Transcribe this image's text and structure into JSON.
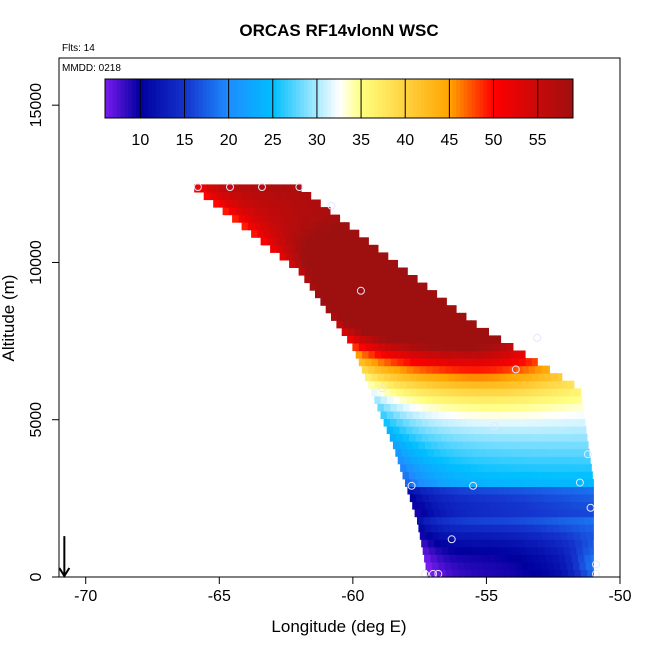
{
  "chart_data": {
    "type": "heatmap",
    "title": "ORCAS RF14vlonN WSC",
    "annotations": [
      "Flts: 14",
      "MMDD: 0218"
    ],
    "xlabel": "Longitude (deg E)",
    "ylabel": "Altitude (m)",
    "xlim": [
      -71,
      -50
    ],
    "ylim": [
      0,
      16500
    ],
    "x_ticks": [
      -70,
      -65,
      -60,
      -55,
      -50
    ],
    "y_ticks": [
      0,
      5000,
      10000,
      15000
    ],
    "grid": false,
    "colorbar": {
      "location": "top",
      "range": [
        6,
        59
      ],
      "ticks": [
        10,
        15,
        20,
        25,
        30,
        35,
        40,
        45,
        50,
        55
      ],
      "colors": [
        "#7b1bf0",
        "#00009e",
        "#1432cc",
        "#1e8cff",
        "#00bfff",
        "#ffffff",
        "#ffff80",
        "#ffa500",
        "#ff0000",
        "#9e1010"
      ],
      "color_stops": [
        6,
        10,
        15,
        20,
        25,
        32.5,
        35,
        45,
        50,
        59
      ]
    },
    "domain": {
      "top_altitude": 12400,
      "upper_left_edge": [
        [
          -66,
          12400
        ],
        [
          -62,
          9700
        ],
        [
          -60,
          7300
        ],
        [
          -58.5,
          4200
        ],
        [
          -57.6,
          1800
        ],
        [
          -57.2,
          0
        ]
      ],
      "right_edge": [
        [
          -62,
          12400
        ],
        [
          -59,
          10400
        ],
        [
          -55.5,
          8100
        ],
        [
          -51.5,
          6000
        ],
        [
          -51,
          3000
        ],
        [
          -51,
          0
        ]
      ]
    },
    "field_features": [
      {
        "name": "upper max",
        "lon": -59.3,
        "alt": 8900,
        "value": 57
      },
      {
        "name": "low band",
        "alt_range": [
          2000,
          3000
        ],
        "value": 10
      }
    ],
    "flight_points": [
      {
        "lon": -65.8,
        "alt": 12400
      },
      {
        "lon": -64.6,
        "alt": 12400
      },
      {
        "lon": -63.4,
        "alt": 12400
      },
      {
        "lon": -62,
        "alt": 12400
      },
      {
        "lon": -60.8,
        "alt": 11800
      },
      {
        "lon": -59.7,
        "alt": 9100
      },
      {
        "lon": -58.9,
        "alt": 6000
      },
      {
        "lon": -57.8,
        "alt": 2900
      },
      {
        "lon": -56.3,
        "alt": 1200
      },
      {
        "lon": -55.5,
        "alt": 2900
      },
      {
        "lon": -54.7,
        "alt": 4800
      },
      {
        "lon": -53.9,
        "alt": 6600
      },
      {
        "lon": -53.1,
        "alt": 7600
      },
      {
        "lon": -51.5,
        "alt": 3000
      },
      {
        "lon": -51.2,
        "alt": 3900
      },
      {
        "lon": -51.1,
        "alt": 2200
      },
      {
        "lon": -50.9,
        "alt": 400
      },
      {
        "lon": -50.9,
        "alt": 100
      },
      {
        "lon": -57.3,
        "alt": 100
      },
      {
        "lon": -57.0,
        "alt": 100
      },
      {
        "lon": -56.8,
        "alt": 100
      }
    ],
    "marker": {
      "type": "arrow-down",
      "lon": -70.8,
      "alt": 600
    }
  }
}
